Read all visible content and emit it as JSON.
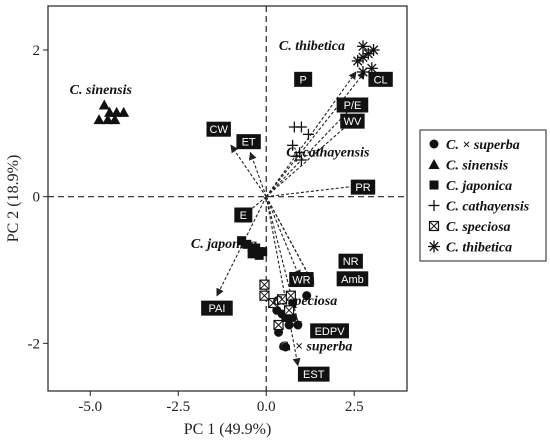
{
  "chart_data": {
    "type": "scatter",
    "xlabel": "PC 1 (49.9%)",
    "ylabel": "PC 2 (18.9%)",
    "xlim": [
      -6.2,
      4.0
    ],
    "ylim": [
      -2.65,
      2.6
    ],
    "x_ticks": [
      -5.0,
      -2.5,
      0.0,
      2.5
    ],
    "x_tick_labels": [
      "-5.0",
      "-2.5",
      "0.0",
      "2.5"
    ],
    "y_ticks": [
      -2,
      0,
      2
    ],
    "y_tick_labels": [
      "-2",
      "0",
      "2"
    ],
    "reference_lines": {
      "x": 0,
      "y": 0,
      "style": "dashed"
    },
    "legend_position": "right",
    "series": [
      {
        "name": "C. × superba",
        "marker": "circle",
        "points": [
          [
            0.3,
            -1.55
          ],
          [
            0.45,
            -1.6
          ],
          [
            0.55,
            -1.65
          ],
          [
            0.75,
            -1.65
          ],
          [
            0.35,
            -1.85
          ],
          [
            0.65,
            -1.75
          ],
          [
            0.9,
            -1.75
          ],
          [
            1.15,
            -1.35
          ],
          [
            0.75,
            -1.45
          ],
          [
            0.55,
            -2.05
          ]
        ]
      },
      {
        "name": "C. sinensis",
        "marker": "triangle",
        "points": [
          [
            -4.6,
            1.25
          ],
          [
            -4.45,
            1.15
          ],
          [
            -4.25,
            1.15
          ],
          [
            -4.05,
            1.15
          ],
          [
            -4.75,
            1.05
          ],
          [
            -4.5,
            1.05
          ],
          [
            -4.3,
            1.05
          ]
        ]
      },
      {
        "name": "C. japonica",
        "marker": "square",
        "points": [
          [
            -0.7,
            -0.6
          ],
          [
            -0.55,
            -0.65
          ],
          [
            -0.4,
            -0.7
          ],
          [
            -0.3,
            -0.7
          ],
          [
            -0.2,
            -0.75
          ],
          [
            -0.1,
            -0.75
          ],
          [
            -0.4,
            -0.78
          ],
          [
            -0.2,
            -0.8
          ]
        ]
      },
      {
        "name": "C. cathayensis",
        "marker": "plus",
        "points": [
          [
            0.8,
            0.95
          ],
          [
            1.0,
            0.95
          ],
          [
            1.2,
            0.85
          ],
          [
            0.75,
            0.7
          ],
          [
            0.95,
            0.6
          ],
          [
            0.85,
            0.55
          ],
          [
            1.0,
            0.5
          ]
        ]
      },
      {
        "name": "C. speciosa",
        "marker": "boxed-x",
        "points": [
          [
            -0.05,
            -1.2
          ],
          [
            -0.05,
            -1.35
          ],
          [
            0.2,
            -1.45
          ],
          [
            0.45,
            -1.4
          ],
          [
            0.7,
            -1.35
          ],
          [
            0.65,
            -1.55
          ],
          [
            0.35,
            -1.75
          ]
        ]
      },
      {
        "name": "C. thibetica",
        "marker": "asterisk",
        "points": [
          [
            2.75,
            2.05
          ],
          [
            2.9,
            1.95
          ],
          [
            3.05,
            2.0
          ],
          [
            2.75,
            1.9
          ],
          [
            2.6,
            1.85
          ],
          [
            3.0,
            1.75
          ],
          [
            2.75,
            1.7
          ]
        ]
      }
    ],
    "vectors": [
      {
        "name": "P",
        "x": 2.55,
        "y": 1.7,
        "label": [
          1.05,
          1.6
        ]
      },
      {
        "name": "CL",
        "x": 2.8,
        "y": 1.7,
        "label": [
          3.25,
          1.6
        ]
      },
      {
        "name": "P/E",
        "x": 2.6,
        "y": 1.3,
        "label": [
          2.45,
          1.25
        ]
      },
      {
        "name": "WV",
        "x": 2.6,
        "y": 1.1,
        "label": [
          2.45,
          1.03
        ]
      },
      {
        "name": "CW",
        "x": -1.0,
        "y": 0.7,
        "label": [
          -1.35,
          0.92
        ]
      },
      {
        "name": "ET",
        "x": -0.45,
        "y": 0.6,
        "label": [
          -0.5,
          0.75
        ]
      },
      {
        "name": "PR",
        "x": 2.65,
        "y": 0.15,
        "label": [
          2.75,
          0.13
        ]
      },
      {
        "name": "E",
        "x": -0.75,
        "y": -0.3,
        "label": [
          -0.65,
          -0.25
        ]
      },
      {
        "name": "PAI",
        "x": -1.4,
        "y": -1.35,
        "label": [
          -1.4,
          -1.52
        ]
      },
      {
        "name": "NR",
        "x": 1.3,
        "y": -1.15,
        "label": [
          2.4,
          -0.88
        ]
      },
      {
        "name": "Amb",
        "x": 1.35,
        "y": -1.2,
        "label": [
          2.45,
          -1.12
        ]
      },
      {
        "name": "WR",
        "x": 0.95,
        "y": -1.1,
        "label": [
          1.0,
          -1.13
        ]
      },
      {
        "name": "EDPV",
        "x": 0.95,
        "y": -1.8,
        "label": [
          1.8,
          -1.83
        ]
      },
      {
        "name": "EST",
        "x": 0.9,
        "y": -2.3,
        "label": [
          1.35,
          -2.42
        ]
      }
    ],
    "group_labels": [
      {
        "text": "C. thibetica",
        "x": 1.3,
        "y": 2.0
      },
      {
        "text": "C. sinensis",
        "x": -4.7,
        "y": 1.4
      },
      {
        "text": "C. cathayensis",
        "x": 1.75,
        "y": 0.55
      },
      {
        "text": "C. japonica",
        "x": -1.2,
        "y": -0.7
      },
      {
        "text": "C. speciosa",
        "x": 1.1,
        "y": -1.48
      },
      {
        "text": "C. × superba",
        "x": 1.4,
        "y": -2.1
      }
    ]
  }
}
